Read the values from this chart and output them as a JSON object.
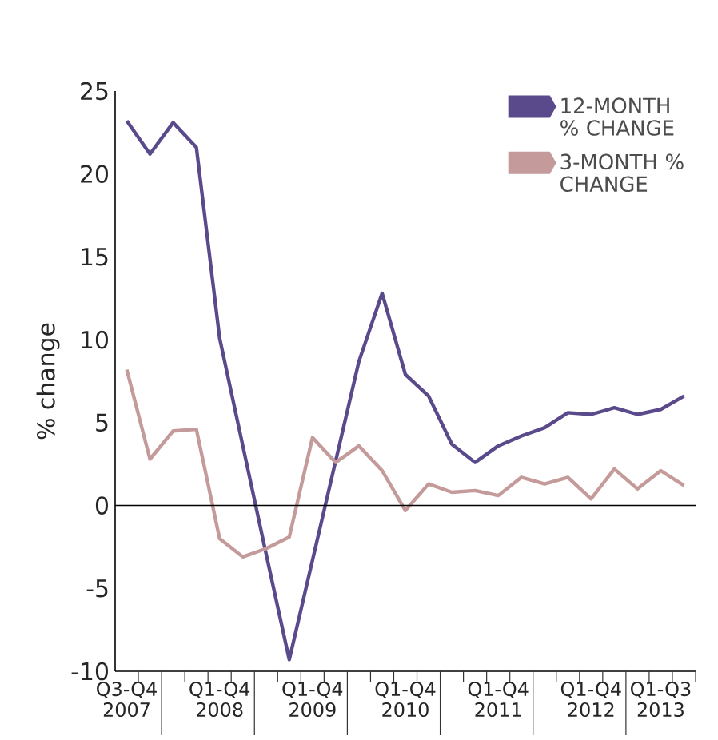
{
  "chart_data": {
    "type": "line",
    "ylabel": "% change",
    "categories": [
      "Q3-Q4 2007",
      null,
      null,
      null,
      "Q1-Q4 2008",
      null,
      null,
      null,
      "Q1-Q4 2009",
      null,
      null,
      null,
      "Q1-Q4 2010",
      null,
      null,
      null,
      "Q1-Q4 2011",
      null,
      null,
      null,
      "Q1-Q4 2012",
      null,
      null,
      "Q1-Q3 2013",
      null
    ],
    "series": [
      {
        "name": "12-MONTH % CHANGE",
        "color": "#5b4a8b",
        "values": [
          23.2,
          21.2,
          23.1,
          21.6,
          10.1,
          3.6,
          -2.9,
          -9.3,
          -3.3,
          2.7,
          8.7,
          12.8,
          7.9,
          6.6,
          3.7,
          2.6,
          3.6,
          4.2,
          4.7,
          5.6,
          5.5,
          5.9,
          5.5,
          5.8,
          6.6
        ]
      },
      {
        "name": "3-MONTH % CHANGE",
        "color": "#c49a9a",
        "values": [
          8.2,
          2.8,
          4.5,
          4.6,
          -2.0,
          -3.1,
          -2.6,
          -1.9,
          4.1,
          2.6,
          3.6,
          2.1,
          -0.3,
          1.3,
          0.8,
          0.9,
          0.6,
          1.7,
          1.3,
          1.7,
          0.4,
          2.2,
          1.0,
          2.1,
          1.2
        ]
      }
    ],
    "ylim": [
      -10,
      25
    ],
    "yticks": [
      -10,
      -5,
      0,
      5,
      10,
      15,
      20,
      25
    ],
    "ref_lines": [
      {
        "axis": "y",
        "value": 0,
        "color": "#000000"
      }
    ],
    "legend": "top right",
    "grid": false,
    "marker": "none",
    "line_style": "solid"
  }
}
